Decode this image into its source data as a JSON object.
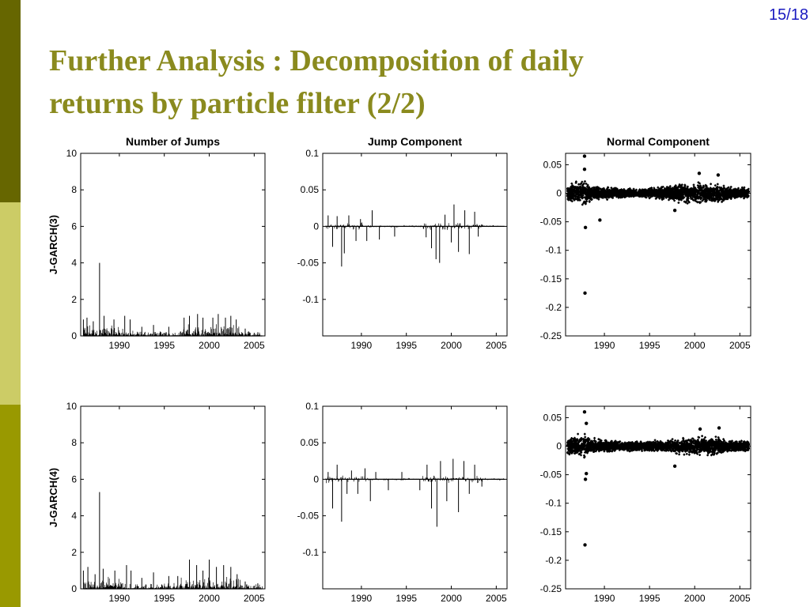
{
  "slide": {
    "page_number": "15/18",
    "title_line1": "Further Analysis : Decomposition of daily",
    "title_line2": "returns by particle filter (2/2)",
    "colors": {
      "title": "#8a8a1e",
      "page_number": "#1a1ac0",
      "sidebar_dark": "#666600",
      "sidebar_light": "#cccc66",
      "sidebar_mid": "#999900"
    }
  },
  "chart_data": [
    {
      "type": "line",
      "title": "Number of Jumps",
      "xlabel": "",
      "ylabel": "J-GARCH(3)",
      "xlim": [
        1985.7,
        2006.2
      ],
      "ylim": [
        0,
        10
      ],
      "xticks": [
        1990,
        1995,
        2000,
        2005
      ],
      "yticks": [
        0,
        2,
        4,
        6,
        8,
        10
      ],
      "ytick_labels": [
        "0",
        "2",
        "4",
        "6",
        "8",
        "10"
      ],
      "spikes": [
        {
          "x": 1986.0,
          "y": 0.9
        },
        {
          "x": 1986.4,
          "y": 1.0
        },
        {
          "x": 1987.1,
          "y": 0.8
        },
        {
          "x": 1987.8,
          "y": 4.0
        },
        {
          "x": 1988.3,
          "y": 1.1
        },
        {
          "x": 1989.4,
          "y": 0.9
        },
        {
          "x": 1990.6,
          "y": 1.1
        },
        {
          "x": 1991.2,
          "y": 0.9
        },
        {
          "x": 1992.5,
          "y": 0.5
        },
        {
          "x": 1993.8,
          "y": 0.6
        },
        {
          "x": 1995.5,
          "y": 0.5
        },
        {
          "x": 1997.2,
          "y": 1.0
        },
        {
          "x": 1997.8,
          "y": 1.1
        },
        {
          "x": 1998.7,
          "y": 1.2
        },
        {
          "x": 1999.3,
          "y": 1.0
        },
        {
          "x": 2000.4,
          "y": 1.0
        },
        {
          "x": 2001.0,
          "y": 1.2
        },
        {
          "x": 2001.8,
          "y": 1.0
        },
        {
          "x": 2002.4,
          "y": 1.1
        },
        {
          "x": 2003.0,
          "y": 0.9
        },
        {
          "x": 2004.0,
          "y": 0.4
        },
        {
          "x": 2005.4,
          "y": 0.2
        }
      ]
    },
    {
      "type": "line",
      "title": "Jump Component",
      "xlabel": "",
      "ylabel": "",
      "xlim": [
        1985.7,
        2006.2
      ],
      "ylim": [
        -0.15,
        0.1
      ],
      "xticks": [
        1990,
        1995,
        2000,
        2005
      ],
      "yticks": [
        -0.1,
        -0.05,
        0,
        0.05,
        0.1
      ],
      "ytick_labels": [
        "-0.1",
        "-0.05",
        "0",
        "0.05",
        "0.1"
      ],
      "spikes": [
        {
          "x": 1986.3,
          "y": 0.015
        },
        {
          "x": 1986.8,
          "y": -0.028
        },
        {
          "x": 1987.3,
          "y": 0.014
        },
        {
          "x": 1987.8,
          "y": -0.055
        },
        {
          "x": 1988.1,
          "y": -0.037
        },
        {
          "x": 1988.6,
          "y": 0.015
        },
        {
          "x": 1989.4,
          "y": -0.02
        },
        {
          "x": 1989.9,
          "y": 0.01
        },
        {
          "x": 1990.6,
          "y": -0.02
        },
        {
          "x": 1991.2,
          "y": 0.022
        },
        {
          "x": 1992.0,
          "y": -0.018
        },
        {
          "x": 1993.7,
          "y": -0.014
        },
        {
          "x": 1997.2,
          "y": -0.015
        },
        {
          "x": 1997.8,
          "y": -0.03
        },
        {
          "x": 1998.3,
          "y": -0.045
        },
        {
          "x": 1998.7,
          "y": -0.05
        },
        {
          "x": 1999.3,
          "y": 0.016
        },
        {
          "x": 2000.0,
          "y": -0.022
        },
        {
          "x": 2000.3,
          "y": 0.03
        },
        {
          "x": 2000.8,
          "y": -0.035
        },
        {
          "x": 2001.5,
          "y": 0.022
        },
        {
          "x": 2002.0,
          "y": -0.038
        },
        {
          "x": 2002.6,
          "y": 0.02
        },
        {
          "x": 2003.0,
          "y": -0.014
        }
      ]
    },
    {
      "type": "scatter",
      "title": "Normal Component",
      "xlabel": "",
      "ylabel": "",
      "xlim": [
        1985.7,
        2006.2
      ],
      "ylim": [
        -0.25,
        0.07
      ],
      "xticks": [
        1990,
        1995,
        2000,
        2005
      ],
      "yticks": [
        -0.25,
        -0.2,
        -0.15,
        -0.1,
        -0.05,
        0,
        0.05
      ],
      "ytick_labels": [
        "-0.25",
        "-0.2",
        "-0.15",
        "-0.1",
        "-0.05",
        "0",
        "0.05"
      ],
      "band": [
        [
          1985.7,
          0.016
        ],
        [
          1986.5,
          0.022
        ],
        [
          1987.8,
          0.028
        ],
        [
          1988.6,
          0.015
        ],
        [
          1990.5,
          0.014
        ],
        [
          1992.0,
          0.01
        ],
        [
          1994.0,
          0.009
        ],
        [
          1996.5,
          0.013
        ],
        [
          1998.5,
          0.02
        ],
        [
          2000.5,
          0.022
        ],
        [
          2002.5,
          0.021
        ],
        [
          2003.5,
          0.014
        ],
        [
          2006.2,
          0.012
        ]
      ],
      "outliers": [
        {
          "x": 1987.8,
          "y": 0.065
        },
        {
          "x": 1987.8,
          "y": 0.042
        },
        {
          "x": 1987.9,
          "y": -0.06
        },
        {
          "x": 1987.85,
          "y": -0.175
        },
        {
          "x": 1989.5,
          "y": -0.047
        },
        {
          "x": 1997.8,
          "y": -0.03
        },
        {
          "x": 2000.5,
          "y": 0.035
        },
        {
          "x": 2002.6,
          "y": 0.032
        }
      ]
    },
    {
      "type": "line",
      "title": "",
      "xlabel": "",
      "ylabel": "J-GARCH(4)",
      "xlim": [
        1985.7,
        2006.2
      ],
      "ylim": [
        0,
        10
      ],
      "xticks": [
        1990,
        1995,
        2000,
        2005
      ],
      "yticks": [
        0,
        2,
        4,
        6,
        8,
        10
      ],
      "ytick_labels": [
        "0",
        "2",
        "4",
        "6",
        "8",
        "10"
      ],
      "spikes": [
        {
          "x": 1986.0,
          "y": 1.0
        },
        {
          "x": 1986.5,
          "y": 1.2
        },
        {
          "x": 1987.3,
          "y": 0.8
        },
        {
          "x": 1987.8,
          "y": 5.3
        },
        {
          "x": 1988.2,
          "y": 1.1
        },
        {
          "x": 1989.5,
          "y": 1.0
        },
        {
          "x": 1990.8,
          "y": 1.3
        },
        {
          "x": 1991.3,
          "y": 1.0
        },
        {
          "x": 1992.5,
          "y": 0.6
        },
        {
          "x": 1993.8,
          "y": 0.9
        },
        {
          "x": 1995.5,
          "y": 0.7
        },
        {
          "x": 1996.5,
          "y": 0.7
        },
        {
          "x": 1997.8,
          "y": 1.6
        },
        {
          "x": 1998.6,
          "y": 1.3
        },
        {
          "x": 1999.3,
          "y": 1.0
        },
        {
          "x": 2000.0,
          "y": 1.6
        },
        {
          "x": 2000.8,
          "y": 1.2
        },
        {
          "x": 2001.6,
          "y": 1.3
        },
        {
          "x": 2002.4,
          "y": 1.2
        },
        {
          "x": 2003.1,
          "y": 0.8
        },
        {
          "x": 2004.0,
          "y": 0.4
        },
        {
          "x": 2005.4,
          "y": 0.3
        }
      ]
    },
    {
      "type": "line",
      "title": "",
      "xlabel": "",
      "ylabel": "",
      "xlim": [
        1985.7,
        2006.2
      ],
      "ylim": [
        -0.15,
        0.1
      ],
      "xticks": [
        1990,
        1995,
        2000,
        2005
      ],
      "yticks": [
        -0.1,
        -0.05,
        0,
        0.05,
        0.1
      ],
      "ytick_labels": [
        "-0.1",
        "-0.05",
        "0",
        "0.05",
        "0.1"
      ],
      "spikes": [
        {
          "x": 1986.3,
          "y": 0.01
        },
        {
          "x": 1986.8,
          "y": -0.04
        },
        {
          "x": 1987.3,
          "y": 0.02
        },
        {
          "x": 1987.8,
          "y": -0.058
        },
        {
          "x": 1988.4,
          "y": -0.02
        },
        {
          "x": 1988.9,
          "y": 0.012
        },
        {
          "x": 1989.6,
          "y": -0.02
        },
        {
          "x": 1990.4,
          "y": 0.015
        },
        {
          "x": 1991.0,
          "y": -0.03
        },
        {
          "x": 1991.6,
          "y": 0.01
        },
        {
          "x": 1993.0,
          "y": -0.015
        },
        {
          "x": 1994.5,
          "y": 0.01
        },
        {
          "x": 1996.5,
          "y": -0.015
        },
        {
          "x": 1997.3,
          "y": 0.02
        },
        {
          "x": 1997.8,
          "y": -0.04
        },
        {
          "x": 1998.4,
          "y": -0.065
        },
        {
          "x": 1998.8,
          "y": 0.025
        },
        {
          "x": 1999.5,
          "y": -0.03
        },
        {
          "x": 2000.2,
          "y": 0.028
        },
        {
          "x": 2000.8,
          "y": -0.045
        },
        {
          "x": 2001.4,
          "y": 0.025
        },
        {
          "x": 2002.0,
          "y": -0.02
        },
        {
          "x": 2002.6,
          "y": 0.02
        },
        {
          "x": 2003.4,
          "y": -0.01
        }
      ]
    },
    {
      "type": "scatter",
      "title": "",
      "xlabel": "",
      "ylabel": "",
      "xlim": [
        1985.7,
        2006.2
      ],
      "ylim": [
        -0.25,
        0.07
      ],
      "xticks": [
        1990,
        1995,
        2000,
        2005
      ],
      "yticks": [
        -0.25,
        -0.2,
        -0.15,
        -0.1,
        -0.05,
        0,
        0.05
      ],
      "ytick_labels": [
        "-0.25",
        "-0.2",
        "-0.15",
        "-0.1",
        "-0.05",
        "0",
        "0.05"
      ],
      "band": [
        [
          1985.7,
          0.016
        ],
        [
          1986.5,
          0.022
        ],
        [
          1987.8,
          0.026
        ],
        [
          1988.6,
          0.015
        ],
        [
          1990.5,
          0.013
        ],
        [
          1992.0,
          0.01
        ],
        [
          1994.0,
          0.009
        ],
        [
          1996.5,
          0.012
        ],
        [
          1998.5,
          0.018
        ],
        [
          2000.5,
          0.02
        ],
        [
          2002.5,
          0.02
        ],
        [
          2003.5,
          0.013
        ],
        [
          2006.2,
          0.012
        ]
      ],
      "outliers": [
        {
          "x": 1987.8,
          "y": 0.06
        },
        {
          "x": 1988.0,
          "y": 0.04
        },
        {
          "x": 1987.9,
          "y": -0.058
        },
        {
          "x": 1987.85,
          "y": -0.173
        },
        {
          "x": 1988.0,
          "y": -0.048
        },
        {
          "x": 1997.8,
          "y": -0.035
        },
        {
          "x": 2000.6,
          "y": 0.03
        },
        {
          "x": 2002.7,
          "y": 0.032
        }
      ]
    }
  ]
}
